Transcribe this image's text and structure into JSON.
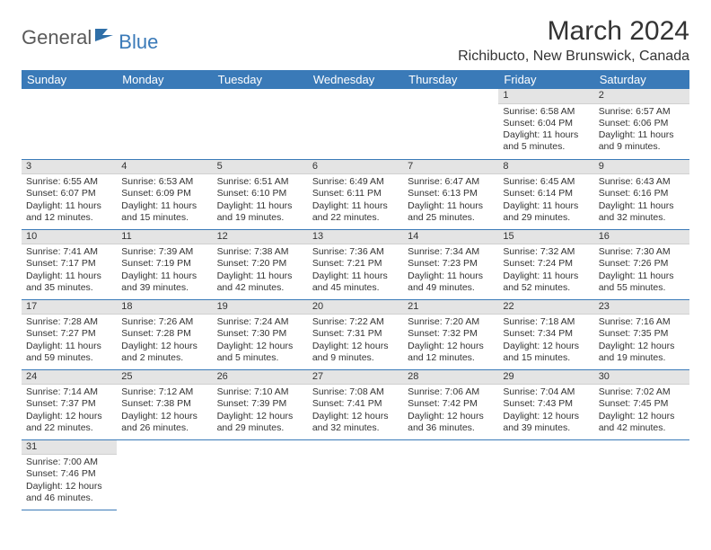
{
  "brand": {
    "part1": "General",
    "part2": "Blue"
  },
  "title": "March 2024",
  "location": "Richibucto, New Brunswick, Canada",
  "colors": {
    "header_bg": "#3a7ab8",
    "header_fg": "#ffffff",
    "daybar_bg": "#e4e4e4",
    "rule": "#3a7ab8",
    "text": "#333333",
    "background": "#ffffff"
  },
  "weekdays": [
    "Sunday",
    "Monday",
    "Tuesday",
    "Wednesday",
    "Thursday",
    "Friday",
    "Saturday"
  ],
  "weeks": [
    [
      null,
      null,
      null,
      null,
      null,
      {
        "n": "1",
        "sunrise": "Sunrise: 6:58 AM",
        "sunset": "Sunset: 6:04 PM",
        "daylight": "Daylight: 11 hours and 5 minutes."
      },
      {
        "n": "2",
        "sunrise": "Sunrise: 6:57 AM",
        "sunset": "Sunset: 6:06 PM",
        "daylight": "Daylight: 11 hours and 9 minutes."
      }
    ],
    [
      {
        "n": "3",
        "sunrise": "Sunrise: 6:55 AM",
        "sunset": "Sunset: 6:07 PM",
        "daylight": "Daylight: 11 hours and 12 minutes."
      },
      {
        "n": "4",
        "sunrise": "Sunrise: 6:53 AM",
        "sunset": "Sunset: 6:09 PM",
        "daylight": "Daylight: 11 hours and 15 minutes."
      },
      {
        "n": "5",
        "sunrise": "Sunrise: 6:51 AM",
        "sunset": "Sunset: 6:10 PM",
        "daylight": "Daylight: 11 hours and 19 minutes."
      },
      {
        "n": "6",
        "sunrise": "Sunrise: 6:49 AM",
        "sunset": "Sunset: 6:11 PM",
        "daylight": "Daylight: 11 hours and 22 minutes."
      },
      {
        "n": "7",
        "sunrise": "Sunrise: 6:47 AM",
        "sunset": "Sunset: 6:13 PM",
        "daylight": "Daylight: 11 hours and 25 minutes."
      },
      {
        "n": "8",
        "sunrise": "Sunrise: 6:45 AM",
        "sunset": "Sunset: 6:14 PM",
        "daylight": "Daylight: 11 hours and 29 minutes."
      },
      {
        "n": "9",
        "sunrise": "Sunrise: 6:43 AM",
        "sunset": "Sunset: 6:16 PM",
        "daylight": "Daylight: 11 hours and 32 minutes."
      }
    ],
    [
      {
        "n": "10",
        "sunrise": "Sunrise: 7:41 AM",
        "sunset": "Sunset: 7:17 PM",
        "daylight": "Daylight: 11 hours and 35 minutes."
      },
      {
        "n": "11",
        "sunrise": "Sunrise: 7:39 AM",
        "sunset": "Sunset: 7:19 PM",
        "daylight": "Daylight: 11 hours and 39 minutes."
      },
      {
        "n": "12",
        "sunrise": "Sunrise: 7:38 AM",
        "sunset": "Sunset: 7:20 PM",
        "daylight": "Daylight: 11 hours and 42 minutes."
      },
      {
        "n": "13",
        "sunrise": "Sunrise: 7:36 AM",
        "sunset": "Sunset: 7:21 PM",
        "daylight": "Daylight: 11 hours and 45 minutes."
      },
      {
        "n": "14",
        "sunrise": "Sunrise: 7:34 AM",
        "sunset": "Sunset: 7:23 PM",
        "daylight": "Daylight: 11 hours and 49 minutes."
      },
      {
        "n": "15",
        "sunrise": "Sunrise: 7:32 AM",
        "sunset": "Sunset: 7:24 PM",
        "daylight": "Daylight: 11 hours and 52 minutes."
      },
      {
        "n": "16",
        "sunrise": "Sunrise: 7:30 AM",
        "sunset": "Sunset: 7:26 PM",
        "daylight": "Daylight: 11 hours and 55 minutes."
      }
    ],
    [
      {
        "n": "17",
        "sunrise": "Sunrise: 7:28 AM",
        "sunset": "Sunset: 7:27 PM",
        "daylight": "Daylight: 11 hours and 59 minutes."
      },
      {
        "n": "18",
        "sunrise": "Sunrise: 7:26 AM",
        "sunset": "Sunset: 7:28 PM",
        "daylight": "Daylight: 12 hours and 2 minutes."
      },
      {
        "n": "19",
        "sunrise": "Sunrise: 7:24 AM",
        "sunset": "Sunset: 7:30 PM",
        "daylight": "Daylight: 12 hours and 5 minutes."
      },
      {
        "n": "20",
        "sunrise": "Sunrise: 7:22 AM",
        "sunset": "Sunset: 7:31 PM",
        "daylight": "Daylight: 12 hours and 9 minutes."
      },
      {
        "n": "21",
        "sunrise": "Sunrise: 7:20 AM",
        "sunset": "Sunset: 7:32 PM",
        "daylight": "Daylight: 12 hours and 12 minutes."
      },
      {
        "n": "22",
        "sunrise": "Sunrise: 7:18 AM",
        "sunset": "Sunset: 7:34 PM",
        "daylight": "Daylight: 12 hours and 15 minutes."
      },
      {
        "n": "23",
        "sunrise": "Sunrise: 7:16 AM",
        "sunset": "Sunset: 7:35 PM",
        "daylight": "Daylight: 12 hours and 19 minutes."
      }
    ],
    [
      {
        "n": "24",
        "sunrise": "Sunrise: 7:14 AM",
        "sunset": "Sunset: 7:37 PM",
        "daylight": "Daylight: 12 hours and 22 minutes."
      },
      {
        "n": "25",
        "sunrise": "Sunrise: 7:12 AM",
        "sunset": "Sunset: 7:38 PM",
        "daylight": "Daylight: 12 hours and 26 minutes."
      },
      {
        "n": "26",
        "sunrise": "Sunrise: 7:10 AM",
        "sunset": "Sunset: 7:39 PM",
        "daylight": "Daylight: 12 hours and 29 minutes."
      },
      {
        "n": "27",
        "sunrise": "Sunrise: 7:08 AM",
        "sunset": "Sunset: 7:41 PM",
        "daylight": "Daylight: 12 hours and 32 minutes."
      },
      {
        "n": "28",
        "sunrise": "Sunrise: 7:06 AM",
        "sunset": "Sunset: 7:42 PM",
        "daylight": "Daylight: 12 hours and 36 minutes."
      },
      {
        "n": "29",
        "sunrise": "Sunrise: 7:04 AM",
        "sunset": "Sunset: 7:43 PM",
        "daylight": "Daylight: 12 hours and 39 minutes."
      },
      {
        "n": "30",
        "sunrise": "Sunrise: 7:02 AM",
        "sunset": "Sunset: 7:45 PM",
        "daylight": "Daylight: 12 hours and 42 minutes."
      }
    ],
    [
      {
        "n": "31",
        "sunrise": "Sunrise: 7:00 AM",
        "sunset": "Sunset: 7:46 PM",
        "daylight": "Daylight: 12 hours and 46 minutes."
      },
      null,
      null,
      null,
      null,
      null,
      null
    ]
  ]
}
